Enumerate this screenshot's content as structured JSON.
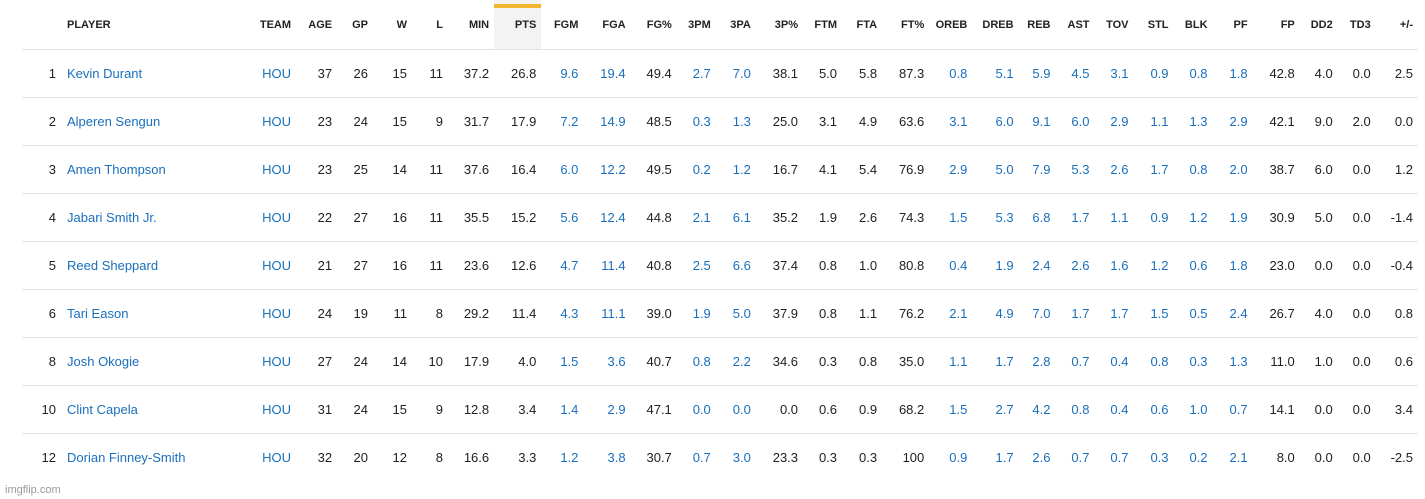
{
  "table": {
    "columns": [
      "",
      "PLAYER",
      "TEAM",
      "AGE",
      "GP",
      "W",
      "L",
      "MIN",
      "PTS",
      "FGM",
      "FGA",
      "FG%",
      "3PM",
      "3PA",
      "3P%",
      "FTM",
      "FTA",
      "FT%",
      "OREB",
      "DREB",
      "REB",
      "AST",
      "TOV",
      "STL",
      "BLK",
      "PF",
      "FP",
      "DD2",
      "TD3",
      "+/-"
    ],
    "sorted_column": "PTS",
    "sort_indicator_color": "#f2b630",
    "link_color": "#1a6fbd",
    "rows": [
      [
        "1",
        "Kevin Durant",
        "HOU",
        "37",
        "26",
        "15",
        "11",
        "37.2",
        "26.8",
        "9.6",
        "19.4",
        "49.4",
        "2.7",
        "7.0",
        "38.1",
        "5.0",
        "5.8",
        "87.3",
        "0.8",
        "5.1",
        "5.9",
        "4.5",
        "3.1",
        "0.9",
        "0.8",
        "1.8",
        "42.8",
        "4.0",
        "0.0",
        "2.5"
      ],
      [
        "2",
        "Alperen Sengun",
        "HOU",
        "23",
        "24",
        "15",
        "9",
        "31.7",
        "17.9",
        "7.2",
        "14.9",
        "48.5",
        "0.3",
        "1.3",
        "25.0",
        "3.1",
        "4.9",
        "63.6",
        "3.1",
        "6.0",
        "9.1",
        "6.0",
        "2.9",
        "1.1",
        "1.3",
        "2.9",
        "42.1",
        "9.0",
        "2.0",
        "0.0"
      ],
      [
        "3",
        "Amen Thompson",
        "HOU",
        "23",
        "25",
        "14",
        "11",
        "37.6",
        "16.4",
        "6.0",
        "12.2",
        "49.5",
        "0.2",
        "1.2",
        "16.7",
        "4.1",
        "5.4",
        "76.9",
        "2.9",
        "5.0",
        "7.9",
        "5.3",
        "2.6",
        "1.7",
        "0.8",
        "2.0",
        "38.7",
        "6.0",
        "0.0",
        "1.2"
      ],
      [
        "4",
        "Jabari Smith Jr.",
        "HOU",
        "22",
        "27",
        "16",
        "11",
        "35.5",
        "15.2",
        "5.6",
        "12.4",
        "44.8",
        "2.1",
        "6.1",
        "35.2",
        "1.9",
        "2.6",
        "74.3",
        "1.5",
        "5.3",
        "6.8",
        "1.7",
        "1.1",
        "0.9",
        "1.2",
        "1.9",
        "30.9",
        "5.0",
        "0.0",
        "-1.4"
      ],
      [
        "5",
        "Reed Sheppard",
        "HOU",
        "21",
        "27",
        "16",
        "11",
        "23.6",
        "12.6",
        "4.7",
        "11.4",
        "40.8",
        "2.5",
        "6.6",
        "37.4",
        "0.8",
        "1.0",
        "80.8",
        "0.4",
        "1.9",
        "2.4",
        "2.6",
        "1.6",
        "1.2",
        "0.6",
        "1.8",
        "23.0",
        "0.0",
        "0.0",
        "-0.4"
      ],
      [
        "6",
        "Tari Eason",
        "HOU",
        "24",
        "19",
        "11",
        "8",
        "29.2",
        "11.4",
        "4.3",
        "11.1",
        "39.0",
        "1.9",
        "5.0",
        "37.9",
        "0.8",
        "1.1",
        "76.2",
        "2.1",
        "4.9",
        "7.0",
        "1.7",
        "1.7",
        "1.5",
        "0.5",
        "2.4",
        "26.7",
        "4.0",
        "0.0",
        "0.8"
      ],
      [
        "8",
        "Josh Okogie",
        "HOU",
        "27",
        "24",
        "14",
        "10",
        "17.9",
        "4.0",
        "1.5",
        "3.6",
        "40.7",
        "0.8",
        "2.2",
        "34.6",
        "0.3",
        "0.8",
        "35.0",
        "1.1",
        "1.7",
        "2.8",
        "0.7",
        "0.4",
        "0.8",
        "0.3",
        "1.3",
        "11.0",
        "1.0",
        "0.0",
        "0.6"
      ],
      [
        "10",
        "Clint Capela",
        "HOU",
        "31",
        "24",
        "15",
        "9",
        "12.8",
        "3.4",
        "1.4",
        "2.9",
        "47.1",
        "0.0",
        "0.0",
        "0.0",
        "0.6",
        "0.9",
        "68.2",
        "1.5",
        "2.7",
        "4.2",
        "0.8",
        "0.4",
        "0.6",
        "1.0",
        "0.7",
        "14.1",
        "0.0",
        "0.0",
        "3.4"
      ],
      [
        "12",
        "Dorian Finney-Smith",
        "HOU",
        "32",
        "20",
        "12",
        "8",
        "16.6",
        "3.3",
        "1.2",
        "3.8",
        "30.7",
        "0.7",
        "3.0",
        "23.3",
        "0.3",
        "0.3",
        "100",
        "0.9",
        "1.7",
        "2.6",
        "0.7",
        "0.7",
        "0.3",
        "0.2",
        "2.1",
        "8.0",
        "0.0",
        "0.0",
        "-2.5"
      ]
    ]
  },
  "watermark": "imgflip.com"
}
